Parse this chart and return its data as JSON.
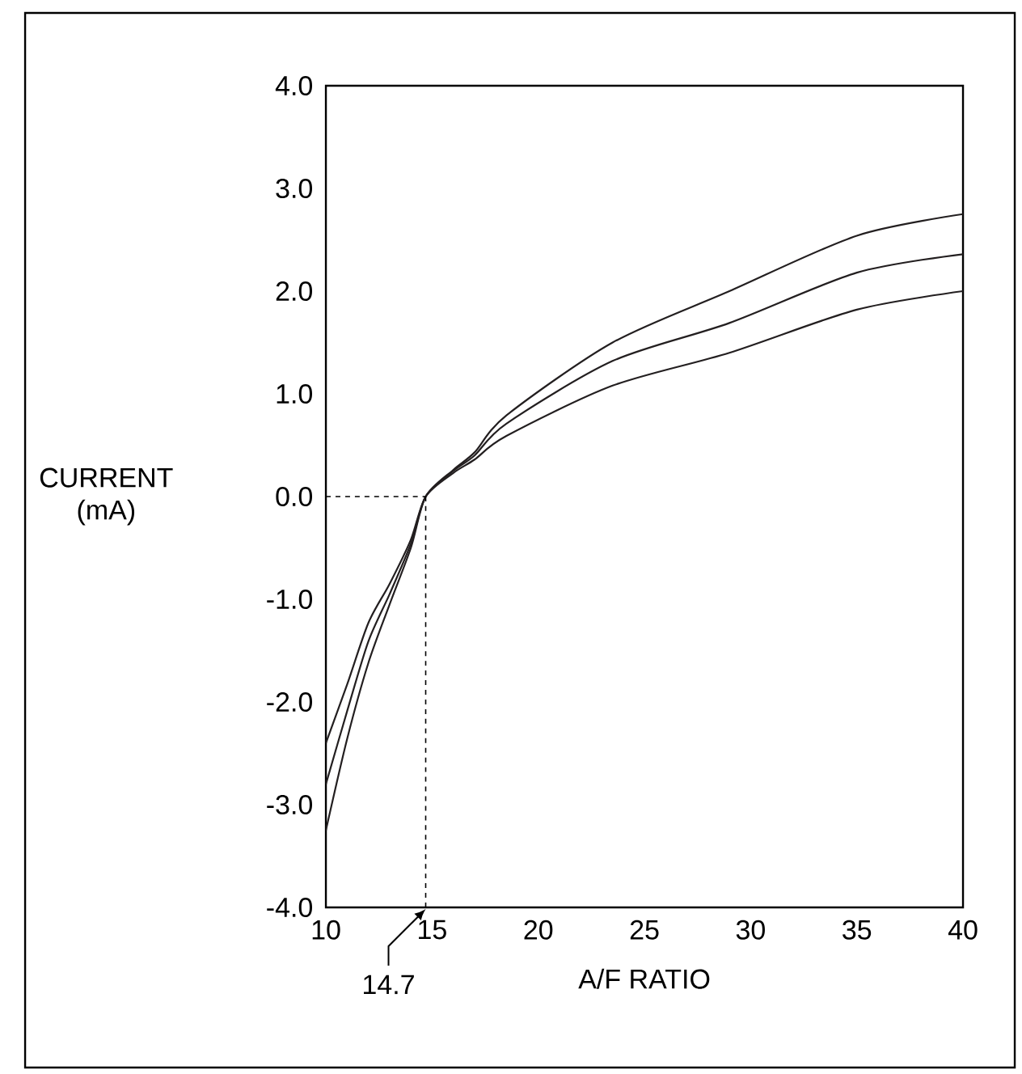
{
  "chart_data": {
    "type": "line",
    "xlabel": "A/F RATIO",
    "ylabel": "CURRENT (mA)",
    "xlim": [
      10,
      40
    ],
    "ylim": [
      -4,
      4
    ],
    "xticks": [
      10,
      15,
      20,
      25,
      30,
      35,
      40
    ],
    "yticks": [
      {
        "value": -4,
        "label": "-4.0"
      },
      {
        "value": -3,
        "label": "-3.0"
      },
      {
        "value": -2,
        "label": "-2.0"
      },
      {
        "value": -1,
        "label": "-1.0"
      },
      {
        "value": 0,
        "label": "0.0"
      },
      {
        "value": 1,
        "label": "1.0"
      },
      {
        "value": 2,
        "label": "2.0"
      },
      {
        "value": 3,
        "label": "3.0"
      },
      {
        "value": 4,
        "label": "4.0"
      }
    ],
    "x": [
      10,
      11,
      12,
      13,
      14,
      14.7,
      16,
      17,
      18.5,
      23.5,
      29,
      35,
      40
    ],
    "series": [
      {
        "color": "#231f20",
        "values": [
          -3.25,
          -2.36,
          -1.62,
          -1.05,
          -0.5,
          0,
          0.26,
          0.43,
          0.79,
          1.5,
          2.0,
          2.54,
          2.75
        ]
      },
      {
        "color": "#231f20",
        "values": [
          -2.8,
          -2.09,
          -1.41,
          -0.95,
          -0.46,
          0,
          0.25,
          0.4,
          0.71,
          1.32,
          1.69,
          2.18,
          2.36
        ]
      },
      {
        "color": "#231f20",
        "values": [
          -2.4,
          -1.83,
          -1.23,
          -0.85,
          -0.42,
          0,
          0.23,
          0.36,
          0.59,
          1.08,
          1.4,
          1.82,
          2.0
        ]
      }
    ],
    "ref_lines": [
      {
        "axis": "x",
        "value": 14.7,
        "line_style": "dashed"
      },
      {
        "axis": "y",
        "value": 0,
        "line_style": "dashed"
      }
    ],
    "annotations": [
      {
        "text": "14.7",
        "x": 14.7,
        "y": -4
      }
    ],
    "grid": false,
    "marker": "none",
    "line_style": "solid"
  }
}
